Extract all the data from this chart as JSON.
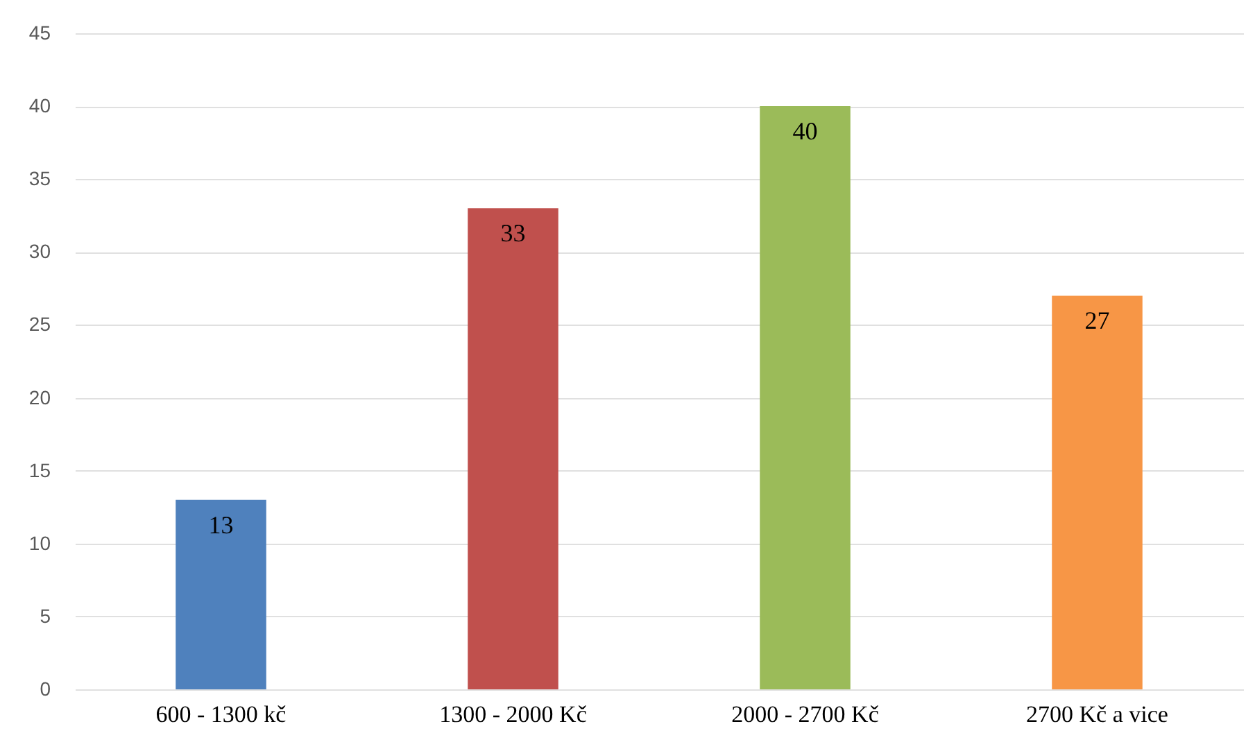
{
  "chart_data": {
    "type": "bar",
    "categories": [
      "600 - 1300 kč",
      "1300 - 2000 Kč",
      "2000 - 2700 Kč",
      "2700 Kč a vice"
    ],
    "values": [
      13,
      33,
      40,
      27
    ],
    "colors": [
      "#4f81bd",
      "#c0504d",
      "#9bbb59",
      "#f79646"
    ],
    "ylim": [
      0,
      45
    ],
    "yticks": [
      0,
      5,
      10,
      15,
      20,
      25,
      30,
      35,
      40,
      45
    ],
    "grid": "y",
    "data_labels": true
  }
}
